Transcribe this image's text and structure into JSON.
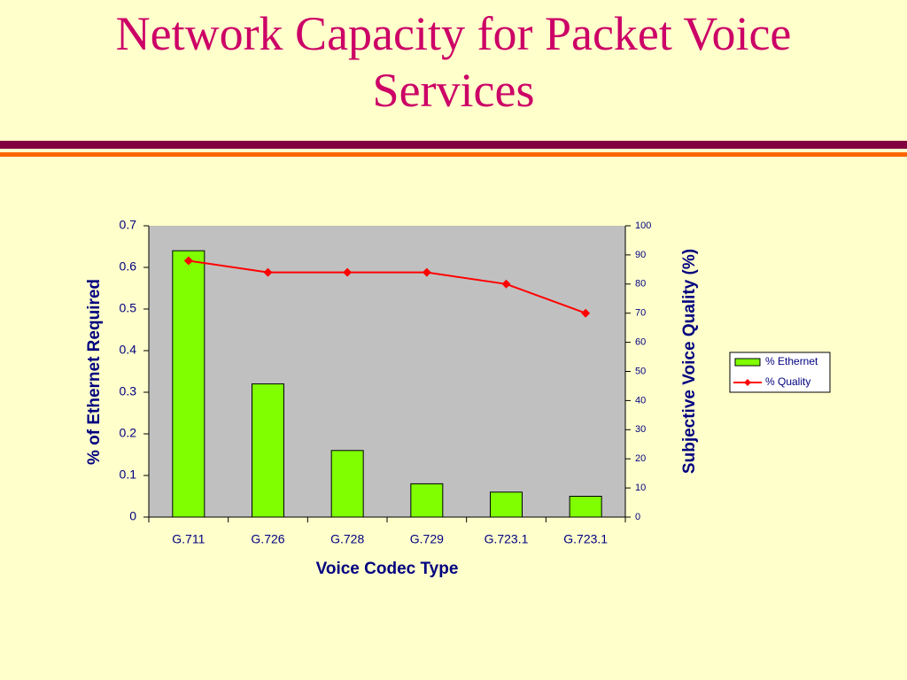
{
  "chart_data": {
    "type": "bar",
    "title": "Network Capacity for Packet Voice Services",
    "x_label": "Voice Codec Type",
    "y_label": "% of Ethernet Required",
    "y2_label": "Subjective Voice Quality (%)",
    "categories": [
      "G.711",
      "G.726",
      "G.728",
      "G.729",
      "G.723.1",
      "G.723.1"
    ],
    "series": [
      {
        "name": "% Ethernet",
        "type": "bar",
        "color": "#80ff00",
        "values": [
          0.64,
          0.32,
          0.16,
          0.08,
          0.06,
          0.05
        ]
      },
      {
        "name": "% Quality",
        "type": "line",
        "axis": "y2",
        "color": "#ff0000",
        "values": [
          88,
          84,
          84,
          84,
          80,
          70
        ]
      }
    ],
    "ylim": [
      0,
      0.7
    ],
    "yticks": [
      0,
      0.1,
      0.2,
      0.3,
      0.4,
      0.5,
      0.6,
      0.7
    ],
    "y2lim": [
      0,
      100
    ],
    "y2ticks": [
      0,
      10,
      20,
      30,
      40,
      50,
      60,
      70,
      80,
      90,
      100
    ],
    "grid": false,
    "legend": "right"
  }
}
